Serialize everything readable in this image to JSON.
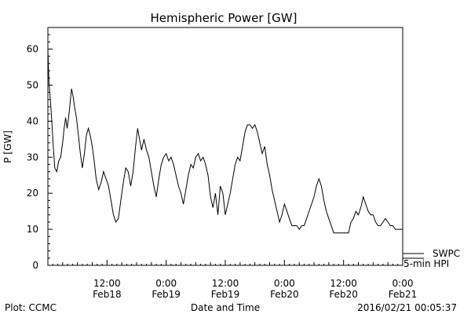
{
  "chart_data": {
    "type": "line",
    "title": "Hemispheric Power [GW]",
    "xlabel": "Date and Time",
    "ylabel": "P [GW]",
    "ylim": [
      0,
      66
    ],
    "xlim": [
      0,
      72
    ],
    "x_unit": "hours from the start of the plotted interval",
    "yticks": [
      0,
      10,
      20,
      30,
      40,
      50,
      60
    ],
    "xticks": [
      {
        "x": 12,
        "time": "12:00",
        "date": "Feb18"
      },
      {
        "x": 24,
        "time": "0:00",
        "date": "Feb19"
      },
      {
        "x": 36,
        "time": "12:00",
        "date": "Feb19"
      },
      {
        "x": 48,
        "time": "0:00",
        "date": "Feb20"
      },
      {
        "x": 60,
        "time": "12:00",
        "date": "Feb20"
      },
      {
        "x": 72,
        "time": "0:00",
        "date": "Feb21"
      }
    ],
    "grid": false,
    "legend": [
      "SWPC",
      "5-min HPI"
    ],
    "series": [
      {
        "name": "5-min HPI",
        "color": "#000000",
        "points": [
          [
            0.0,
            60
          ],
          [
            0.2,
            51
          ],
          [
            0.5,
            46
          ],
          [
            0.8,
            40
          ],
          [
            1.1,
            33
          ],
          [
            1.4,
            27
          ],
          [
            1.8,
            26
          ],
          [
            2.2,
            29
          ],
          [
            2.6,
            30
          ],
          [
            3.0,
            34
          ],
          [
            3.3,
            38
          ],
          [
            3.6,
            41
          ],
          [
            3.9,
            38
          ],
          [
            4.2,
            41
          ],
          [
            4.5,
            45
          ],
          [
            4.8,
            49
          ],
          [
            5.1,
            47
          ],
          [
            5.4,
            44
          ],
          [
            5.8,
            41
          ],
          [
            6.2,
            36
          ],
          [
            6.6,
            31
          ],
          [
            7.0,
            27
          ],
          [
            7.4,
            31
          ],
          [
            7.8,
            36
          ],
          [
            8.2,
            38
          ],
          [
            8.6,
            36
          ],
          [
            9.0,
            33
          ],
          [
            9.4,
            29
          ],
          [
            9.8,
            24
          ],
          [
            10.3,
            21
          ],
          [
            10.8,
            23
          ],
          [
            11.3,
            26
          ],
          [
            11.8,
            24
          ],
          [
            12.3,
            22
          ],
          [
            12.8,
            18
          ],
          [
            13.3,
            14
          ],
          [
            13.8,
            12
          ],
          [
            14.3,
            13
          ],
          [
            14.8,
            18
          ],
          [
            15.3,
            23
          ],
          [
            15.8,
            27
          ],
          [
            16.3,
            26
          ],
          [
            16.8,
            22
          ],
          [
            17.3,
            26
          ],
          [
            17.8,
            33
          ],
          [
            18.2,
            38
          ],
          [
            18.6,
            35
          ],
          [
            19.0,
            32
          ],
          [
            19.5,
            35
          ],
          [
            20.0,
            32
          ],
          [
            20.5,
            30
          ],
          [
            21.0,
            26
          ],
          [
            21.5,
            22
          ],
          [
            22.0,
            19
          ],
          [
            22.5,
            24
          ],
          [
            23.0,
            28
          ],
          [
            23.5,
            30
          ],
          [
            24.0,
            31
          ],
          [
            24.5,
            29
          ],
          [
            25.0,
            30
          ],
          [
            25.5,
            28
          ],
          [
            26.0,
            25
          ],
          [
            26.5,
            22
          ],
          [
            27.0,
            20
          ],
          [
            27.5,
            17
          ],
          [
            28.0,
            21
          ],
          [
            28.5,
            25
          ],
          [
            29.0,
            28
          ],
          [
            29.5,
            27
          ],
          [
            30.0,
            30
          ],
          [
            30.5,
            31
          ],
          [
            31.0,
            29
          ],
          [
            31.5,
            30
          ],
          [
            32.0,
            28
          ],
          [
            32.5,
            25
          ],
          [
            33.0,
            19
          ],
          [
            33.5,
            16
          ],
          [
            34.0,
            20
          ],
          [
            34.5,
            14
          ],
          [
            35.0,
            22
          ],
          [
            35.5,
            20
          ],
          [
            36.0,
            14
          ],
          [
            36.5,
            17
          ],
          [
            37.0,
            20
          ],
          [
            37.5,
            24
          ],
          [
            38.0,
            28
          ],
          [
            38.5,
            30
          ],
          [
            39.0,
            29
          ],
          [
            39.5,
            33
          ],
          [
            40.0,
            37
          ],
          [
            40.5,
            39
          ],
          [
            41.0,
            39
          ],
          [
            41.5,
            38
          ],
          [
            42.0,
            39
          ],
          [
            42.5,
            37
          ],
          [
            43.0,
            34
          ],
          [
            43.5,
            31
          ],
          [
            44.0,
            33
          ],
          [
            44.5,
            28
          ],
          [
            45.0,
            25
          ],
          [
            45.5,
            21
          ],
          [
            46.0,
            18
          ],
          [
            46.5,
            15
          ],
          [
            47.0,
            12
          ],
          [
            47.5,
            14
          ],
          [
            48.0,
            17
          ],
          [
            48.5,
            15
          ],
          [
            49.0,
            13
          ],
          [
            49.5,
            11
          ],
          [
            50.0,
            11
          ],
          [
            50.5,
            11
          ],
          [
            51.0,
            10
          ],
          [
            51.5,
            11
          ],
          [
            52.0,
            11
          ],
          [
            52.5,
            13
          ],
          [
            53.0,
            15
          ],
          [
            53.5,
            17
          ],
          [
            54.0,
            19
          ],
          [
            54.5,
            22
          ],
          [
            55.0,
            24
          ],
          [
            55.5,
            22
          ],
          [
            56.0,
            18
          ],
          [
            56.5,
            15
          ],
          [
            57.0,
            13
          ],
          [
            57.5,
            11
          ],
          [
            58.0,
            9
          ],
          [
            58.5,
            9
          ],
          [
            59.0,
            9
          ],
          [
            59.5,
            9
          ],
          [
            60.0,
            9
          ],
          [
            60.5,
            9
          ],
          [
            61.0,
            9
          ],
          [
            61.5,
            12
          ],
          [
            62.0,
            13
          ],
          [
            62.5,
            15
          ],
          [
            63.0,
            14
          ],
          [
            63.5,
            16
          ],
          [
            64.0,
            19
          ],
          [
            64.5,
            17
          ],
          [
            65.0,
            15
          ],
          [
            65.5,
            14
          ],
          [
            66.0,
            14
          ],
          [
            66.5,
            12
          ],
          [
            67.0,
            11
          ],
          [
            67.5,
            11
          ],
          [
            68.0,
            12
          ],
          [
            68.5,
            13
          ],
          [
            69.0,
            12
          ],
          [
            69.5,
            11
          ],
          [
            70.0,
            11
          ],
          [
            70.5,
            10
          ],
          [
            71.0,
            10
          ],
          [
            71.5,
            10
          ],
          [
            72.0,
            10
          ]
        ]
      }
    ]
  },
  "footer": {
    "left": "Plot: CCMC",
    "right": "2016/02/21 00:05:37"
  }
}
